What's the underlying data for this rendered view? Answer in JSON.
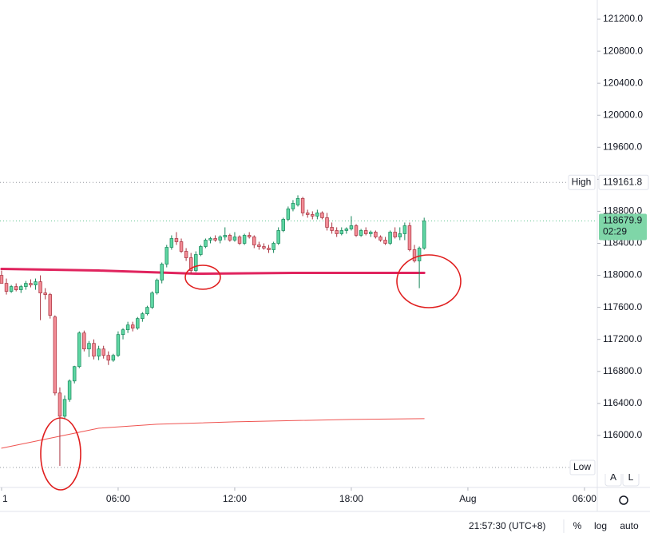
{
  "chart_data": {
    "type": "candlestick",
    "x": [
      0,
      0.25,
      0.5,
      0.75,
      1,
      1.25,
      1.5,
      1.75,
      2,
      2.25,
      2.5,
      2.75,
      3,
      3.25,
      3.5,
      3.75,
      4,
      4.25,
      4.5,
      4.75,
      5,
      5.25,
      5.5,
      5.75,
      6,
      6.25,
      6.5,
      6.75,
      7,
      7.25,
      7.5,
      7.75,
      8,
      8.25,
      8.5,
      8.75,
      9,
      9.25,
      9.5,
      9.75,
      10,
      10.25,
      10.5,
      10.75,
      11,
      11.25,
      11.5,
      11.75,
      12,
      12.25,
      12.5,
      12.75,
      13,
      13.25,
      13.5,
      13.75,
      14,
      14.25,
      14.5,
      14.75,
      15,
      15.25,
      15.5,
      15.75,
      16,
      16.25,
      16.5,
      16.75,
      17,
      17.25,
      17.5,
      17.75,
      18,
      18.25,
      18.5,
      18.75,
      19,
      19.25,
      19.5,
      19.75,
      20,
      20.25,
      20.5,
      20.75,
      21,
      21.25,
      21.5,
      21.75
    ],
    "open": [
      118000,
      117900,
      117800,
      117860,
      117820,
      117860,
      117900,
      117880,
      117920,
      117780,
      117760,
      117480,
      116530,
      116240,
      116450,
      116680,
      116860,
      117280,
      117080,
      117150,
      116990,
      117080,
      117000,
      116940,
      117000,
      117260,
      117320,
      117380,
      117340,
      117460,
      117520,
      117600,
      117780,
      117940,
      118140,
      118350,
      118460,
      118420,
      118300,
      118220,
      118060,
      118260,
      118360,
      118440,
      118460,
      118440,
      118480,
      118500,
      118440,
      118480,
      118400,
      118500,
      118480,
      118380,
      118360,
      118340,
      118320,
      118400,
      118560,
      118700,
      118830,
      118880,
      118960,
      118780,
      118760,
      118740,
      118780,
      118720,
      118600,
      118560,
      118520,
      118560,
      118580,
      118620,
      118500,
      118560,
      118520,
      118540,
      118480,
      118440,
      118400,
      118540,
      118480,
      118520,
      118620,
      118320,
      118180,
      118340
    ],
    "high": [
      118060,
      117960,
      117880,
      117900,
      117880,
      117930,
      117950,
      117960,
      118000,
      117840,
      117780,
      117500,
      116600,
      116500,
      116700,
      116870,
      117300,
      117310,
      117180,
      117200,
      117120,
      117120,
      117050,
      117020,
      117300,
      117340,
      117420,
      117420,
      117480,
      117540,
      117620,
      117800,
      117960,
      118160,
      118380,
      118500,
      118540,
      118460,
      118340,
      118280,
      118300,
      118380,
      118460,
      118480,
      118500,
      118500,
      118600,
      118520,
      118540,
      118500,
      118520,
      118540,
      118500,
      118420,
      118400,
      118380,
      118420,
      118600,
      118720,
      118860,
      118940,
      119000,
      118980,
      118820,
      118800,
      118820,
      118800,
      118780,
      118660,
      118600,
      118600,
      118600,
      118740,
      118640,
      118580,
      118600,
      118560,
      118560,
      118500,
      118480,
      118560,
      118600,
      118600,
      118660,
      118660,
      118380,
      118360,
      118720
    ],
    "low": [
      117900,
      117760,
      117780,
      117800,
      117780,
      117820,
      117850,
      117820,
      117440,
      117700,
      117460,
      116500,
      115620,
      116200,
      116420,
      116650,
      116840,
      117050,
      116980,
      116950,
      116940,
      116960,
      116880,
      116920,
      116980,
      117200,
      117280,
      117300,
      117320,
      117420,
      117500,
      117580,
      117760,
      117900,
      118100,
      118320,
      118380,
      118280,
      118180,
      118020,
      118040,
      118240,
      118340,
      118400,
      118420,
      118400,
      118440,
      118420,
      118420,
      118380,
      118380,
      118460,
      118340,
      118320,
      118320,
      118280,
      118280,
      118380,
      118540,
      118680,
      118800,
      118860,
      118740,
      118720,
      118700,
      118700,
      118700,
      118560,
      118520,
      118480,
      118500,
      118520,
      118560,
      118480,
      118480,
      118500,
      118480,
      118460,
      118420,
      118380,
      118380,
      118460,
      118440,
      118440,
      118300,
      118160,
      117840,
      118320
    ],
    "close": [
      117900,
      117800,
      117860,
      117820,
      117860,
      117900,
      117880,
      117920,
      117780,
      117760,
      117500,
      116530,
      116240,
      116450,
      116680,
      116860,
      117280,
      117080,
      117150,
      116990,
      117080,
      117000,
      116940,
      117000,
      117260,
      117320,
      117380,
      117340,
      117460,
      117520,
      117600,
      117780,
      117940,
      118140,
      118350,
      118460,
      118420,
      118300,
      118220,
      118060,
      118260,
      118360,
      118440,
      118460,
      118440,
      118480,
      118500,
      118440,
      118480,
      118400,
      118500,
      118480,
      118380,
      118360,
      118340,
      118320,
      118400,
      118560,
      118700,
      118830,
      118900,
      118960,
      118780,
      118760,
      118740,
      118780,
      118720,
      118600,
      118560,
      118520,
      118560,
      118580,
      118620,
      118500,
      118560,
      118520,
      118540,
      118480,
      118440,
      118400,
      118540,
      118480,
      118520,
      118620,
      118320,
      118180,
      118340,
      118679.9
    ],
    "up_color": "#5fd6a3",
    "up_border": "#16875a",
    "down_color": "#f28b95",
    "down_border": "#a8323f",
    "indicators": [
      {
        "color": "#e0245e",
        "width": 3,
        "x": [
          0,
          5,
          10,
          15,
          21.75
        ],
        "values": [
          118080,
          118060,
          118020,
          118030,
          118030
        ]
      },
      {
        "color": "#ef5350",
        "width": 1,
        "x": [
          0,
          2,
          4,
          5,
          8,
          12,
          18,
          21.75
        ],
        "values": [
          115840,
          115940,
          116040,
          116090,
          116140,
          116170,
          116200,
          116210
        ]
      }
    ],
    "xlim": [
      -0.08,
      30.66
    ],
    "xticks": [
      {
        "value": 0,
        "label": "1"
      },
      {
        "value": 6,
        "label": "06:00"
      },
      {
        "value": 12,
        "label": "12:00"
      },
      {
        "value": 18,
        "label": "18:00"
      },
      {
        "value": 24,
        "label": "Aug"
      },
      {
        "value": 30,
        "label": "06:00"
      }
    ],
    "ylim": [
      115350,
      121440
    ],
    "yticks": [
      {
        "value": 116000,
        "label": "116000.0"
      },
      {
        "value": 116400,
        "label": "116400.0"
      },
      {
        "value": 116800,
        "label": "116800.0"
      },
      {
        "value": 117200,
        "label": "117200.0"
      },
      {
        "value": 117600,
        "label": "117600.0"
      },
      {
        "value": 118000,
        "label": "118000.0"
      },
      {
        "value": 118400,
        "label": "118400.0"
      },
      {
        "value": 118800,
        "label": "118800.0"
      },
      {
        "value": 119200,
        "label": "119200.0"
      },
      {
        "value": 119600,
        "label": "119600.0"
      },
      {
        "value": 120000,
        "label": "120000.0"
      },
      {
        "value": 120400,
        "label": "120400.0"
      },
      {
        "value": 120800,
        "label": "120800.0"
      },
      {
        "value": 121200,
        "label": "121200.0"
      }
    ],
    "high_line": {
      "label": "High",
      "value": 119161.8
    },
    "low_line": {
      "label": "Low",
      "value": 115600
    },
    "last_price": {
      "value": 118679.9,
      "countdown": "02:29",
      "color": "#7fd6a8"
    },
    "footer": {
      "time": "21:57:30 (UTC+8)",
      "percent": "%",
      "log": "log",
      "auto": "auto",
      "a": "A",
      "l": "L"
    }
  }
}
